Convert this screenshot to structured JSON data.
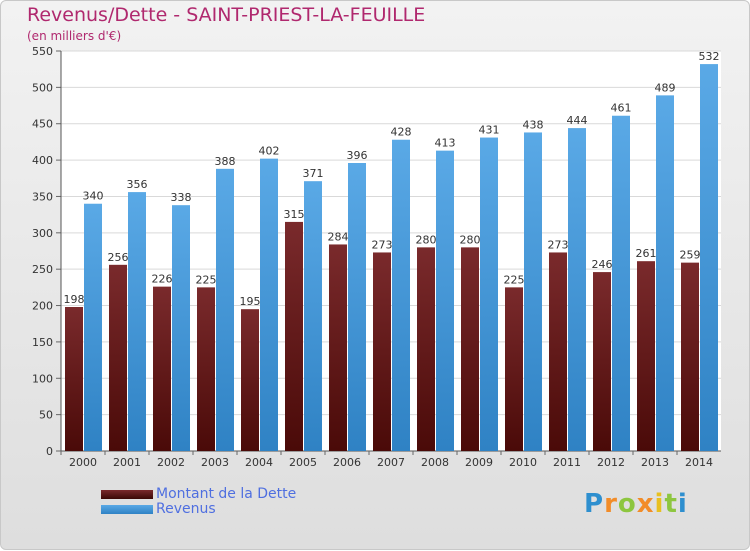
{
  "title": "Revenus/Dette - SAINT-PRIEST-LA-FEUILLE",
  "subtitle": "(en milliers d'€)",
  "logo": {
    "letters": [
      "P",
      "r",
      "o",
      "x",
      "i",
      "t",
      "i"
    ]
  },
  "colors": {
    "dette_top": "#7a2a2c",
    "dette_bottom": "#4a0a08",
    "revenus_top": "#5aa9e6",
    "revenus_bottom": "#2f82c4",
    "title": "#b0286e",
    "legend_text": "#4f6fe0"
  },
  "chart_data": {
    "type": "bar",
    "categories": [
      "2000",
      "2001",
      "2002",
      "2003",
      "2004",
      "2005",
      "2006",
      "2007",
      "2008",
      "2009",
      "2010",
      "2011",
      "2012",
      "2013",
      "2014"
    ],
    "series": [
      {
        "name": "Montant de la Dette",
        "values": [
          198,
          256,
          226,
          225,
          195,
          315,
          284,
          273,
          280,
          280,
          225,
          273,
          246,
          261,
          259
        ]
      },
      {
        "name": "Revenus",
        "values": [
          340,
          356,
          338,
          388,
          402,
          371,
          396,
          428,
          413,
          431,
          438,
          444,
          461,
          489,
          532
        ]
      }
    ],
    "ylim": [
      0,
      550
    ],
    "yticks": [
      0,
      50,
      100,
      150,
      200,
      250,
      300,
      350,
      400,
      450,
      500,
      550
    ],
    "grid": true,
    "legend": "bottom-left"
  }
}
